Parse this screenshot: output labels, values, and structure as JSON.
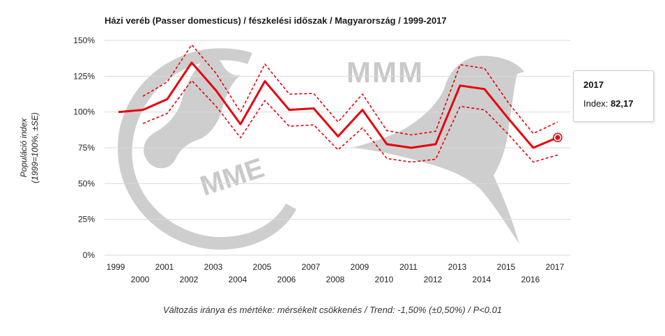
{
  "chart_data": {
    "type": "line",
    "title": "Házi veréb (Passer domesticus) / fészkelési időszak / Magyarország / 1999-2017",
    "ylabel_line1": "Populáció index",
    "ylabel_line2": "(1999=100%, ±SE)",
    "footer": "Változás iránya és mértéke: mérsékelt csökkenés / Trend: -1,50% (±0,50%) / P<0.01",
    "watermark_text": "MMM",
    "watermark_logo_text": "MME",
    "x": [
      1999,
      2000,
      2001,
      2002,
      2003,
      2004,
      2005,
      2006,
      2007,
      2008,
      2009,
      2010,
      2011,
      2012,
      2013,
      2014,
      2015,
      2016,
      2017
    ],
    "ylim": [
      0,
      150
    ],
    "yticks": [
      0,
      25,
      50,
      75,
      100,
      125,
      150
    ],
    "ytick_labels": [
      "0%",
      "25%",
      "50%",
      "75%",
      "100%",
      "125%",
      "150%"
    ],
    "grid": true,
    "series": [
      {
        "role": "index",
        "color": "#e8000b",
        "values": [
          100,
          101.5,
          109,
          134.5,
          115,
          91.5,
          121.5,
          101.5,
          102.5,
          83,
          101.5,
          77.5,
          75,
          77.5,
          118.5,
          116,
          95,
          75,
          82.17
        ]
      },
      {
        "role": "upper",
        "color": "#e8000b",
        "values": [
          null,
          111,
          121,
          147,
          127,
          100,
          133.5,
          112.5,
          113,
          93,
          112.5,
          87,
          84,
          86.5,
          133,
          130.5,
          106,
          85,
          93
        ]
      },
      {
        "role": "lower",
        "color": "#e8000b",
        "values": [
          null,
          92,
          99,
          122,
          104,
          82,
          108,
          90,
          91,
          73.5,
          89,
          67.5,
          65,
          67,
          104,
          101.5,
          84,
          65,
          70
        ]
      }
    ],
    "tooltip": {
      "year": "2017",
      "label": "Index:",
      "value": "82,17"
    }
  }
}
